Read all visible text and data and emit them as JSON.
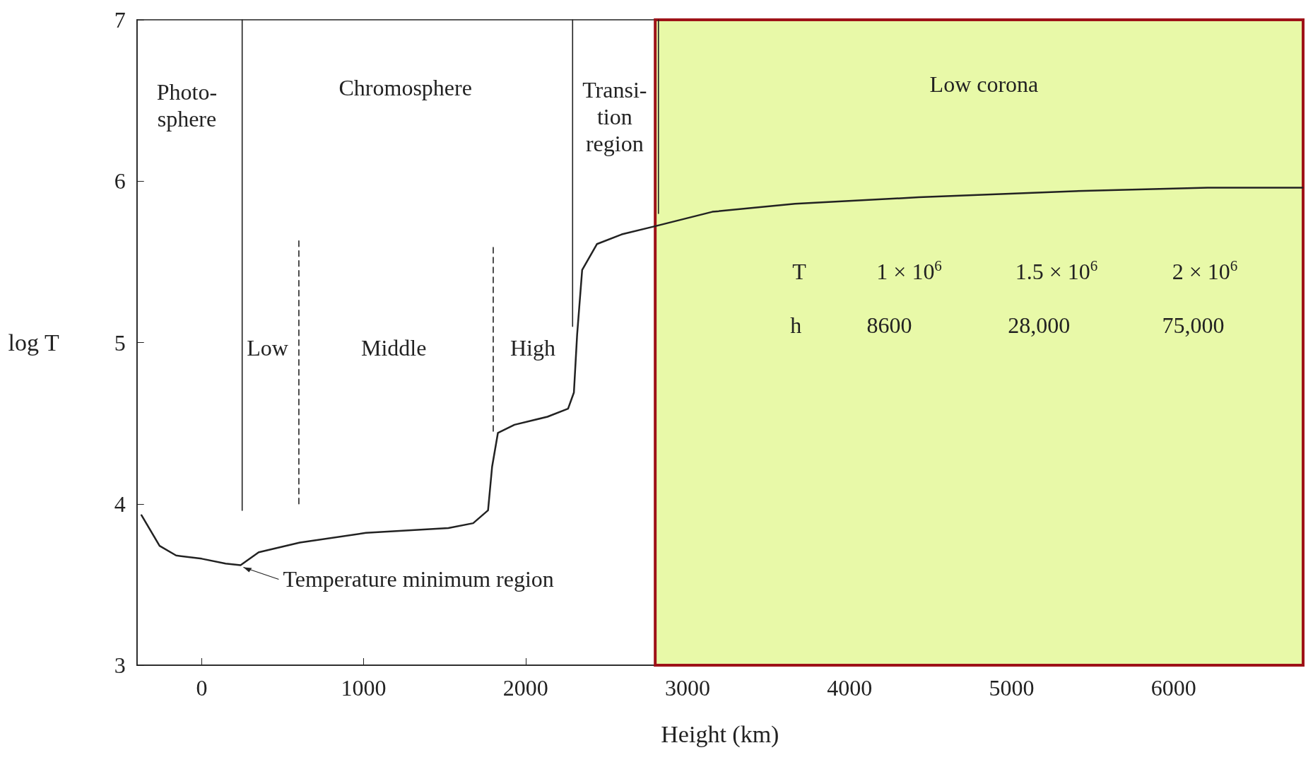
{
  "chart_data": {
    "type": "line",
    "xlabel": "Height (km)",
    "ylabel": "log T",
    "xlim": [
      -400,
      6800
    ],
    "xticks": [
      0,
      1000,
      2000,
      3000,
      4000,
      5000,
      6000
    ],
    "ylim": [
      3,
      7
    ],
    "yticks": [
      3,
      4,
      5,
      6,
      7
    ],
    "grid": false,
    "marker": "none",
    "series": [
      {
        "color": "#222222",
        "line_style": "solid",
        "x": [
          -372,
          -260,
          -158,
          0,
          148,
          240,
          352,
          606,
          1014,
          1523,
          1676,
          1768,
          1793,
          1829,
          1931,
          2135,
          2262,
          2298,
          2318,
          2349,
          2440,
          2593,
          2797,
          3153,
          3663,
          4427,
          5446,
          6210,
          6796
        ],
        "values": [
          3.93,
          3.74,
          3.68,
          3.66,
          3.63,
          3.62,
          3.7,
          3.76,
          3.82,
          3.85,
          3.88,
          3.96,
          4.23,
          4.44,
          4.49,
          4.54,
          4.59,
          4.69,
          5.05,
          5.45,
          5.61,
          5.67,
          5.72,
          5.81,
          5.86,
          5.9,
          5.94,
          5.96,
          5.96
        ]
      },
      {
        "color": "#222222",
        "line_style": "solid",
        "x": [
          250,
          250
        ],
        "values": [
          3.96,
          7
        ]
      },
      {
        "color": "#222222",
        "line_style": "dashed",
        "x": [
          600,
          600
        ],
        "values": [
          4,
          5.65
        ]
      },
      {
        "color": "#222222",
        "line_style": "dashed",
        "x": [
          1800,
          1800
        ],
        "values": [
          4.45,
          5.6
        ]
      },
      {
        "color": "#222222",
        "line_style": "solid",
        "x": [
          2290,
          2290
        ],
        "values": [
          5.1,
          7
        ]
      },
      {
        "color": "#222222",
        "line_style": "solid",
        "x": [
          2820,
          2820
        ],
        "values": [
          5.8,
          7
        ]
      }
    ],
    "bands": [
      {
        "axis": "x",
        "from": 2800,
        "to": 6800,
        "color": "#e8f9a8"
      }
    ],
    "annotations": [
      "Photo-\nsphere",
      "Chromosphere",
      "Transi-\ntion\nregion",
      "Low corona",
      "Low",
      "Middle",
      "High",
      {
        "text": "Temperature minimum region",
        "x": 240,
        "y": 3.62
      },
      "T",
      "1 × 10$^{6}$",
      "1.5 × 10$^{6}$",
      "2 × 10$^{6}$",
      "h",
      "8600",
      "28,000",
      "75,000"
    ]
  }
}
